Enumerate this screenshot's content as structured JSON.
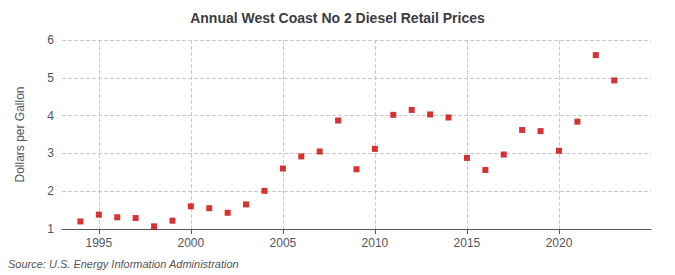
{
  "chart_data": {
    "type": "scatter",
    "title": "Annual West Coast No 2 Diesel Retail Prices",
    "ylabel": "Dollars per Gallon",
    "source": "Source: U.S. Energy Information Administration",
    "x": [
      1994,
      1995,
      1996,
      1997,
      1998,
      1999,
      2000,
      2001,
      2002,
      2003,
      2004,
      2005,
      2006,
      2007,
      2008,
      2009,
      2010,
      2011,
      2012,
      2013,
      2014,
      2015,
      2016,
      2017,
      2018,
      2019,
      2020,
      2021,
      2022,
      2023
    ],
    "values": [
      1.2,
      1.38,
      1.31,
      1.29,
      1.07,
      1.22,
      1.6,
      1.55,
      1.43,
      1.65,
      2.01,
      2.6,
      2.92,
      3.05,
      3.87,
      2.58,
      3.12,
      4.02,
      4.15,
      4.03,
      3.95,
      2.88,
      2.56,
      2.97,
      3.62,
      3.59,
      3.07,
      3.84,
      5.6,
      4.93
    ],
    "color": "#cc0000",
    "marker": "square",
    "xlim": [
      1993,
      2025
    ],
    "ylim": [
      1,
      6
    ],
    "xticks": [
      1995,
      2000,
      2005,
      2010,
      2015,
      2020
    ],
    "yticks": [
      1,
      2,
      3,
      4,
      5,
      6
    ],
    "grid": true
  }
}
